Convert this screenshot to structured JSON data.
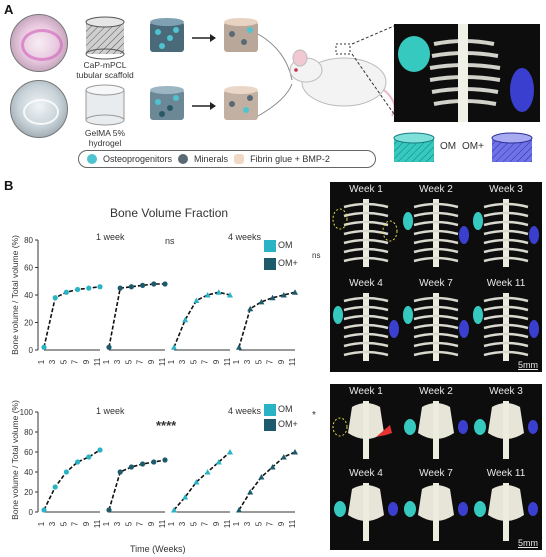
{
  "panel_a": {
    "letter": "A",
    "scaffold_label": "CaP-mPCL tubular scaffold",
    "hydrogel_label": "GelMA 5% hydrogel",
    "legend": [
      "Osteoprogenitors",
      "Minerals",
      "Fibrin glue + BMP-2"
    ],
    "om_label": "OM",
    "omplus_label": "OM+"
  },
  "panel_b": {
    "letter": "B",
    "chart_title": "Bone Volume Fraction",
    "ylabel": "Bone volume / Total volume (%)",
    "xlabel": "Time (Weeks)",
    "top_chart": {
      "label_1week": "1 week",
      "label_4weeks": "4 weeks",
      "sig_groups": "ns",
      "sig_om": "ns",
      "legend_om": "OM",
      "legend_omplus": "OM+",
      "yticks": [
        "0",
        "20",
        "40",
        "60",
        "80"
      ]
    },
    "bottom_chart": {
      "label_1week": "1 week",
      "label_4weeks": "4 weeks",
      "sig_groups": "****",
      "sig_om": "*",
      "legend_om": "OM",
      "legend_omplus": "OM+",
      "yticks": [
        "0",
        "20",
        "40",
        "60",
        "80",
        "100"
      ]
    },
    "xticks": [
      "1",
      "3",
      "5",
      "7",
      "9",
      "11"
    ],
    "top_scan": {
      "weeks": [
        "Week 1",
        "Week 2",
        "Week 3",
        "Week 4",
        "Week 7",
        "Week 11"
      ],
      "scale": "5mm"
    },
    "bottom_scan": {
      "weeks": [
        "Week 1",
        "Week 2",
        "Week 3",
        "Week 4",
        "Week 7",
        "Week 11"
      ],
      "scale": "5mm"
    }
  },
  "colors": {
    "om": "#2ab3c5",
    "omplus": "#1d5a6b",
    "fibrin": "#f0d8c6",
    "mouse_bg": "#0d0d0d",
    "implant_om": "#36c9c0",
    "implant_omplus": "#3a3fcf"
  },
  "chart_data": [
    {
      "type": "scatter",
      "title": "Bone Volume Fraction",
      "xlabel": "",
      "ylabel": "Bone volume / Total volume (%)",
      "ylim": [
        0,
        80
      ],
      "x": [
        1,
        3,
        5,
        7,
        9,
        11
      ],
      "series": [
        {
          "name": "OM",
          "group": "1 week",
          "values": [
            2,
            38,
            42,
            44,
            45,
            46
          ]
        },
        {
          "name": "OM+",
          "group": "1 week",
          "values": [
            2,
            45,
            46,
            47,
            48,
            48
          ]
        },
        {
          "name": "OM",
          "group": "4 weeks",
          "values": [
            2,
            22,
            36,
            40,
            42,
            40
          ]
        },
        {
          "name": "OM+",
          "group": "4 weeks",
          "values": [
            2,
            30,
            35,
            38,
            40,
            42
          ]
        }
      ]
    },
    {
      "type": "scatter",
      "title": "",
      "xlabel": "Time (Weeks)",
      "ylabel": "Bone volume / Total volume (%)",
      "ylim": [
        0,
        100
      ],
      "x": [
        1,
        3,
        5,
        7,
        9,
        11
      ],
      "series": [
        {
          "name": "OM",
          "group": "1 week",
          "values": [
            2,
            25,
            40,
            50,
            55,
            62
          ]
        },
        {
          "name": "OM+",
          "group": "1 week",
          "values": [
            2,
            40,
            45,
            48,
            50,
            52
          ]
        },
        {
          "name": "OM",
          "group": "4 weeks",
          "values": [
            2,
            15,
            30,
            40,
            50,
            60
          ]
        },
        {
          "name": "OM+",
          "group": "4 weeks",
          "values": [
            2,
            20,
            35,
            45,
            55,
            60
          ]
        }
      ]
    }
  ]
}
